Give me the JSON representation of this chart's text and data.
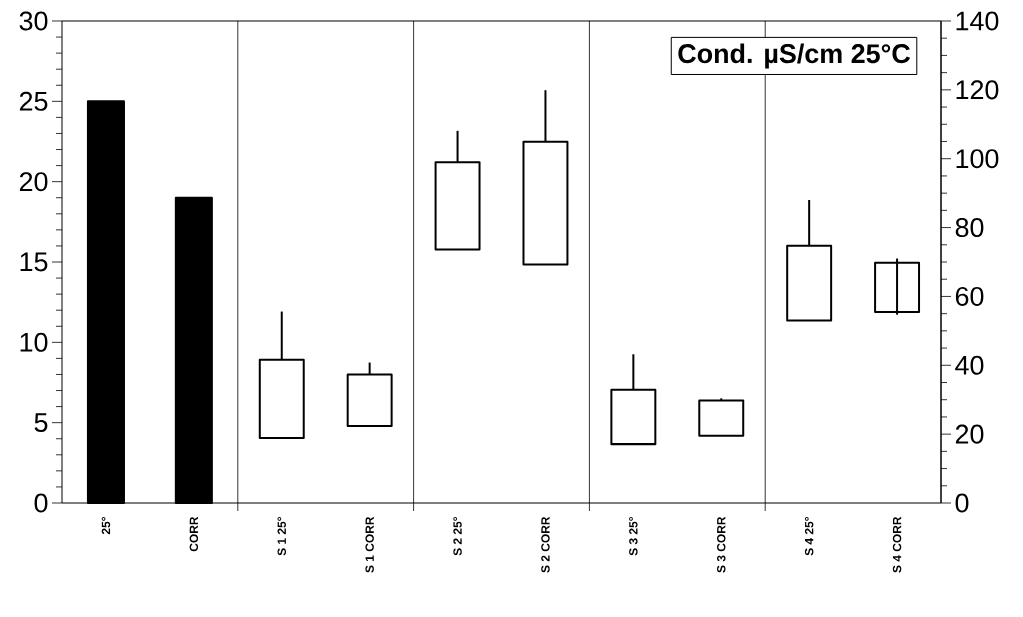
{
  "chart_data": {
    "type": "bar",
    "categories": [
      "25°",
      "CORR",
      "S 1 25°",
      "S 1 CORR",
      "S 2 25°",
      "S 2 CORR",
      "S 3 25°",
      "S 3 CORR",
      "S 4 25°",
      "S 4 CORR"
    ],
    "series": [
      {
        "color": "#000000",
        "axis": "y",
        "values": [
          25,
          19,
          null,
          null,
          null,
          null,
          null,
          null,
          null,
          null
        ]
      },
      {
        "color": "#ffffff",
        "axis": "y2",
        "base": [
          null,
          null,
          18.9,
          22.4,
          73.6,
          69.3,
          17.1,
          19.5,
          53.0,
          55.5
        ],
        "values": [
          null,
          null,
          22.7,
          14.9,
          25.4,
          35.6,
          15.8,
          10.3,
          21.7,
          14.3
        ],
        "errors": [
          null,
          null,
          [
            41.6,
            55.6
          ],
          [
            37.3,
            40.8
          ],
          [
            99.0,
            108.1
          ],
          [
            104.9,
            119.9
          ],
          [
            32.9,
            43.2
          ],
          [
            29.8,
            30.4
          ],
          [
            74.7,
            88.0
          ],
          [
            54.7,
            71.0
          ]
        ]
      }
    ],
    "ylim": [
      0,
      30
    ],
    "yticks": [
      0,
      5,
      10,
      15,
      20,
      25,
      30
    ],
    "y2lim": [
      0,
      140
    ],
    "y2ticks": [
      0,
      20,
      40,
      60,
      80,
      100,
      120,
      140
    ],
    "annotations": [
      "Cond. µS/cm 25°C"
    ]
  }
}
